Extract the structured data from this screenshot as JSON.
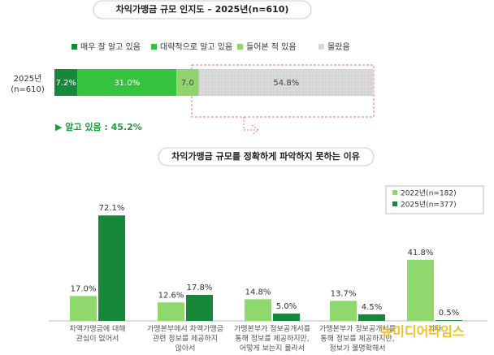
{
  "chart_data": [
    {
      "type": "stacked_hbar",
      "title": "차익가맹금 규모 인지도 – 2025년(n=610)",
      "categories": [
        [
          "2025년",
          "(n=610)"
        ]
      ],
      "series": [
        {
          "name": "매우 잘 알고 있음",
          "color": "#17873a",
          "values": [
            7.2
          ],
          "value_labels": [
            "7.2%"
          ]
        },
        {
          "name": "대략적으로 알고 있음",
          "color": "#34c23f",
          "values": [
            31.0
          ],
          "value_labels": [
            "31.0%"
          ]
        },
        {
          "name": "들어본 적 있음",
          "color": "#8fd46e",
          "values": [
            7.0
          ],
          "value_labels": [
            "7.0"
          ]
        },
        {
          "name": "몰랐음",
          "color": "#d6d6d6",
          "values": [
            54.8
          ],
          "value_labels": [
            "54.8%"
          ]
        }
      ],
      "annotation": "▶ 알고 있음 : 45.2%"
    },
    {
      "type": "grouped_bar",
      "title": "차익가맹금 규모를 정확하게 파악하지 못하는 이유",
      "categories": [
        [
          "차액가맹금에 대해",
          "관심이 없어서"
        ],
        [
          "가맹본부에서 차액가맹금",
          "관련 정보를 제공하지",
          "않아서"
        ],
        [
          "가맹본부가 정보공개서를",
          "통해 정보를 제공하지만,",
          "어떻게 보는지 몰라서"
        ],
        [
          "가맹본부가 정보공개서를",
          "통해 정보를 제공하지만,",
          "정보가 불명확해서"
        ],
        [
          "기타"
        ]
      ],
      "series": [
        {
          "name": "2022년(n=182)",
          "color": "#8ed86e",
          "values": [
            17.0,
            12.6,
            14.8,
            13.7,
            41.8
          ],
          "value_labels": [
            "17.0%",
            "12.6%",
            "14.8%",
            "13.7%",
            "41.8%"
          ]
        },
        {
          "name": "2025년(n=377)",
          "color": "#17873a",
          "values": [
            72.1,
            17.8,
            5.0,
            4.5,
            0.5
          ],
          "value_labels": [
            "72.1%",
            "17.8%",
            "5.0%",
            "4.5%",
            "0.5%"
          ]
        }
      ]
    }
  ],
  "watermark": "뉴미디어타임스"
}
